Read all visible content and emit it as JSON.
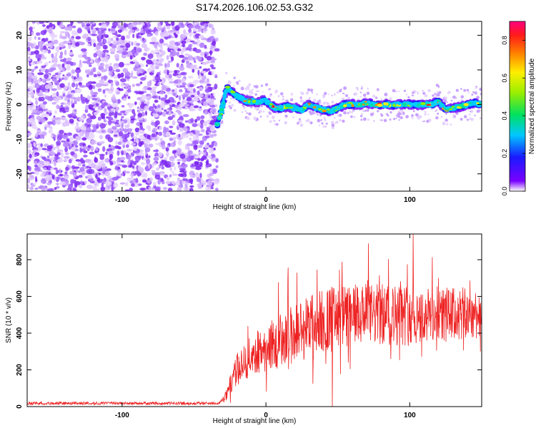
{
  "figure_title": "S174.2026.106.02.53.G32",
  "chart_data": [
    {
      "type": "heatmap",
      "title": "S174.2026.106.02.53.G32",
      "xlabel": "Height of straight line (km)",
      "ylabel": "Frequency (Hz)",
      "xlim": [
        -166,
        150
      ],
      "ylim": [
        -25,
        24
      ],
      "xticks": [
        -100,
        0,
        100
      ],
      "yticks": [
        -20,
        -10,
        0,
        10,
        20
      ],
      "noise_region_x": [
        -166,
        -34
      ],
      "signal_trace": {
        "x": [
          -34,
          -31,
          -29,
          -27,
          -25,
          -22,
          -18,
          -14,
          -10,
          -6,
          -3,
          0,
          3,
          6,
          10,
          15,
          20,
          25,
          30,
          35,
          40,
          45,
          50,
          55,
          60,
          65,
          70,
          75,
          80,
          85,
          90,
          95,
          100,
          105,
          110,
          115,
          120,
          125,
          130,
          135,
          140,
          145,
          150
        ],
        "freq_hz": [
          -6,
          -2,
          2,
          5,
          4,
          3,
          2,
          1,
          1,
          0.5,
          1,
          1,
          0,
          -1,
          -1,
          -0.5,
          -1,
          -1.5,
          0,
          -1,
          -1.5,
          -2,
          -1,
          0,
          0,
          0,
          0.5,
          0,
          0,
          0,
          0,
          0,
          0,
          0,
          0,
          0,
          1,
          -1.5,
          -1,
          -0.5,
          0,
          0.5,
          0
        ]
      },
      "colorbar": {
        "label": "Normalized spectral amplitude",
        "range": [
          0,
          0.9
        ],
        "ticks": [
          "0.0",
          "0.2",
          "0.4",
          "0.6",
          "0.8"
        ]
      }
    },
    {
      "type": "line",
      "xlabel": "Height of straight line (km)",
      "ylabel": "SNR (10 * v/v)",
      "xlim": [
        -166,
        150
      ],
      "ylim": [
        0,
        940
      ],
      "xticks": [
        -100,
        0,
        100
      ],
      "yticks": [
        0,
        200,
        400,
        600,
        800
      ],
      "color": "#ee2222",
      "envelope": {
        "x": [
          -166,
          -40,
          -32,
          -28,
          -24,
          -20,
          -15,
          -10,
          -5,
          0,
          5,
          10,
          15,
          20,
          30,
          40,
          50,
          60,
          70,
          80,
          90,
          100,
          110,
          120,
          130,
          140,
          150
        ],
        "mean": [
          18,
          18,
          20,
          50,
          140,
          200,
          240,
          280,
          300,
          320,
          340,
          360,
          380,
          400,
          440,
          470,
          480,
          490,
          500,
          500,
          500,
          500,
          490,
          500,
          500,
          500,
          510
        ],
        "spread": [
          8,
          8,
          10,
          30,
          60,
          90,
          100,
          110,
          120,
          130,
          140,
          150,
          160,
          170,
          180,
          180,
          180,
          180,
          170,
          170,
          170,
          170,
          160,
          160,
          150,
          150,
          130
        ]
      }
    }
  ]
}
